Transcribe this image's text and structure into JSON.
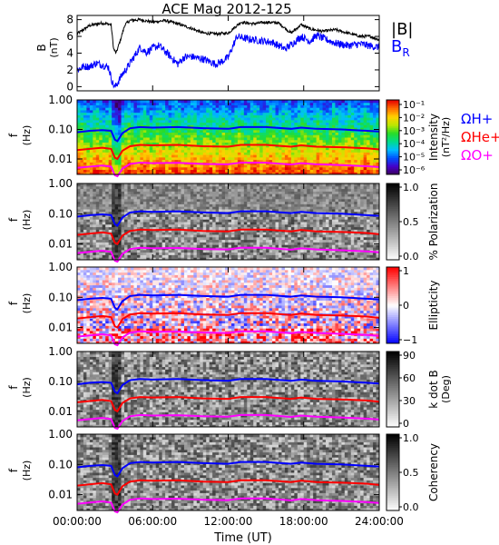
{
  "chart_data": {
    "title": "ACE Mag 2012-125",
    "xlabel": "Time (UT)",
    "x_ticks": [
      "00:00:00",
      "06:00:00",
      "12:00:00",
      "18:00:00",
      "24:00:00"
    ],
    "x_range_hours": [
      0,
      24
    ],
    "panels": [
      {
        "type": "line",
        "ylabel": "B",
        "yunit": "(nT)",
        "ylim": [
          -0.5,
          8.5
        ],
        "y_ticks": [
          "0",
          "2",
          "4",
          "6",
          "8"
        ],
        "y_tick_values": [
          0,
          2,
          4,
          6,
          8
        ],
        "series": [
          {
            "name": "|B|",
            "color": "#000000",
            "points": [
              [
                0,
                6.3
              ],
              [
                1,
                7.3
              ],
              [
                2,
                7.6
              ],
              [
                2.7,
                7.4
              ],
              [
                2.9,
                4.5
              ],
              [
                3.1,
                4.0
              ],
              [
                3.4,
                5.4
              ],
              [
                3.8,
                7.4
              ],
              [
                4.2,
                7.9
              ],
              [
                5,
                8.0
              ],
              [
                6,
                7.7
              ],
              [
                7,
                7.9
              ],
              [
                8,
                7.5
              ],
              [
                9,
                7.0
              ],
              [
                10,
                6.4
              ],
              [
                11,
                6.3
              ],
              [
                12,
                6.4
              ],
              [
                13,
                7.7
              ],
              [
                14,
                7.5
              ],
              [
                15,
                7.7
              ],
              [
                16,
                7.6
              ],
              [
                17,
                6.4
              ],
              [
                17.8,
                7.4
              ],
              [
                18.5,
                6.9
              ],
              [
                19.5,
                6.6
              ],
              [
                20.5,
                6.8
              ],
              [
                21.5,
                6.4
              ],
              [
                22.5,
                6.0
              ],
              [
                23.3,
                6.0
              ],
              [
                24,
                5.6
              ]
            ]
          },
          {
            "name": "B_R",
            "color": "#0000ff",
            "points": [
              [
                0,
                2.0
              ],
              [
                0.5,
                2.4
              ],
              [
                1,
                2.4
              ],
              [
                1.5,
                2.8
              ],
              [
                2,
                2.6
              ],
              [
                2.5,
                2.3
              ],
              [
                2.8,
                0.5
              ],
              [
                3.0,
                -0.1
              ],
              [
                3.2,
                0.4
              ],
              [
                3.6,
                1.5
              ],
              [
                4,
                2.3
              ],
              [
                4.5,
                3.5
              ],
              [
                5,
                4.7
              ],
              [
                5.5,
                4.1
              ],
              [
                6,
                4.6
              ],
              [
                6.5,
                4.9
              ],
              [
                7,
                4.2
              ],
              [
                8,
                2.7
              ],
              [
                8.5,
                3.5
              ],
              [
                9,
                3.6
              ],
              [
                10,
                3.3
              ],
              [
                11,
                2.7
              ],
              [
                11.5,
                3.0
              ],
              [
                12,
                3.5
              ],
              [
                12.7,
                6.0
              ],
              [
                13.5,
                5.7
              ],
              [
                14.5,
                5.5
              ],
              [
                15.5,
                5.3
              ],
              [
                16.5,
                4.5
              ],
              [
                17,
                5.0
              ],
              [
                17.8,
                6.0
              ],
              [
                18.5,
                5.4
              ],
              [
                19,
                6.1
              ],
              [
                19.5,
                5.8
              ],
              [
                20.5,
                5.2
              ],
              [
                21.5,
                4.9
              ],
              [
                22.5,
                5.1
              ],
              [
                23.5,
                4.8
              ],
              [
                24,
                4.7
              ]
            ]
          }
        ],
        "legend": [
          "|B|",
          "B_R"
        ]
      },
      {
        "type": "heatmap",
        "colormap": "rainbow",
        "ylabel": "f",
        "yunit": "(Hz)",
        "y_ticks": [
          "1.00",
          "0.10",
          "0.01"
        ],
        "ylim": [
          0.003,
          1.0
        ],
        "yscale": "log",
        "colorbar": {
          "label": "Intensity",
          "unit": "(nT²/Hz)",
          "ticks": [
            "10⁻¹",
            "10⁻²",
            "10⁻³",
            "10⁻⁴",
            "10⁻⁵",
            "10⁻⁶"
          ],
          "range_log10": [
            -6.7,
            -0.6
          ]
        },
        "legend": [
          "ΩH+",
          "ΩHe+",
          "ΩO+"
        ]
      },
      {
        "type": "heatmap",
        "colormap": "gray",
        "ylabel": "f",
        "yunit": "(Hz)",
        "y_ticks": [
          "1.00",
          "0.10",
          "0.01"
        ],
        "ylim": [
          0.003,
          1.0
        ],
        "yscale": "log",
        "colorbar": {
          "label": "% Polarization",
          "ticks": [
            "1.0",
            "0.5",
            "0.0"
          ],
          "range": [
            0,
            1
          ]
        }
      },
      {
        "type": "heatmap",
        "colormap": "bwr",
        "ylabel": "f",
        "yunit": "(Hz)",
        "y_ticks": [
          "1.00",
          "0.10",
          "0.01"
        ],
        "ylim": [
          0.003,
          1.0
        ],
        "yscale": "log",
        "colorbar": {
          "label": "Ellipticity",
          "ticks": [
            "1",
            "0",
            "−1"
          ],
          "range": [
            -1,
            1
          ]
        }
      },
      {
        "type": "heatmap",
        "colormap": "gray",
        "ylabel": "f",
        "yunit": "(Hz)",
        "y_ticks": [
          "1.00",
          "0.10",
          "0.01"
        ],
        "ylim": [
          0.003,
          1.0
        ],
        "yscale": "log",
        "colorbar": {
          "label": "k dot B",
          "unit": "(Deg)",
          "ticks": [
            "90",
            "60",
            "30",
            "0"
          ],
          "range": [
            0,
            90
          ]
        }
      },
      {
        "type": "heatmap",
        "colormap": "gray",
        "ylabel": "f",
        "yunit": "(Hz)",
        "y_ticks": [
          "1.00",
          "0.10",
          "0.01"
        ],
        "ylim": [
          0.003,
          1.0
        ],
        "yscale": "log",
        "colorbar": {
          "label": "Coherency",
          "ticks": [
            "1.0",
            "0.5",
            "0.0"
          ],
          "range": [
            0,
            1
          ]
        }
      }
    ],
    "gyrofrequency_lines": [
      {
        "name": "ΩH+",
        "color": "#0000ff",
        "points": [
          [
            0,
            0.08
          ],
          [
            1,
            0.09
          ],
          [
            2,
            0.095
          ],
          [
            2.7,
            0.09
          ],
          [
            3.0,
            0.045
          ],
          [
            3.2,
            0.04
          ],
          [
            3.6,
            0.075
          ],
          [
            4.2,
            0.11
          ],
          [
            5,
            0.12
          ],
          [
            6,
            0.115
          ],
          [
            8,
            0.12
          ],
          [
            10,
            0.11
          ],
          [
            12,
            0.105
          ],
          [
            13,
            0.12
          ],
          [
            15,
            0.12
          ],
          [
            17,
            0.105
          ],
          [
            17.8,
            0.115
          ],
          [
            19,
            0.105
          ],
          [
            21,
            0.1
          ],
          [
            23,
            0.09
          ],
          [
            24,
            0.085
          ]
        ]
      },
      {
        "name": "ΩHe+",
        "color": "#ff0000",
        "points": [
          [
            0,
            0.02
          ],
          [
            1,
            0.022
          ],
          [
            2,
            0.024
          ],
          [
            2.7,
            0.022
          ],
          [
            3.0,
            0.011
          ],
          [
            3.2,
            0.01
          ],
          [
            3.6,
            0.019
          ],
          [
            4.2,
            0.027
          ],
          [
            5,
            0.03
          ],
          [
            6,
            0.029
          ],
          [
            8,
            0.03
          ],
          [
            10,
            0.027
          ],
          [
            12,
            0.026
          ],
          [
            13,
            0.03
          ],
          [
            15,
            0.03
          ],
          [
            17,
            0.026
          ],
          [
            17.8,
            0.029
          ],
          [
            19,
            0.026
          ],
          [
            21,
            0.025
          ],
          [
            23,
            0.023
          ],
          [
            24,
            0.021
          ]
        ]
      },
      {
        "name": "ΩO+",
        "color": "#ff00ff",
        "points": [
          [
            0,
            0.005
          ],
          [
            1,
            0.0055
          ],
          [
            2,
            0.006
          ],
          [
            2.7,
            0.0055
          ],
          [
            3.0,
            0.0028
          ],
          [
            3.2,
            0.0026
          ],
          [
            3.6,
            0.0047
          ],
          [
            4.2,
            0.0068
          ],
          [
            5,
            0.0075
          ],
          [
            6,
            0.0072
          ],
          [
            8,
            0.0074
          ],
          [
            10,
            0.0068
          ],
          [
            12,
            0.0066
          ],
          [
            13,
            0.0075
          ],
          [
            15,
            0.0075
          ],
          [
            17,
            0.0065
          ],
          [
            17.8,
            0.0072
          ],
          [
            19,
            0.0066
          ],
          [
            21,
            0.0062
          ],
          [
            23,
            0.0057
          ],
          [
            24,
            0.0053
          ]
        ]
      }
    ]
  }
}
